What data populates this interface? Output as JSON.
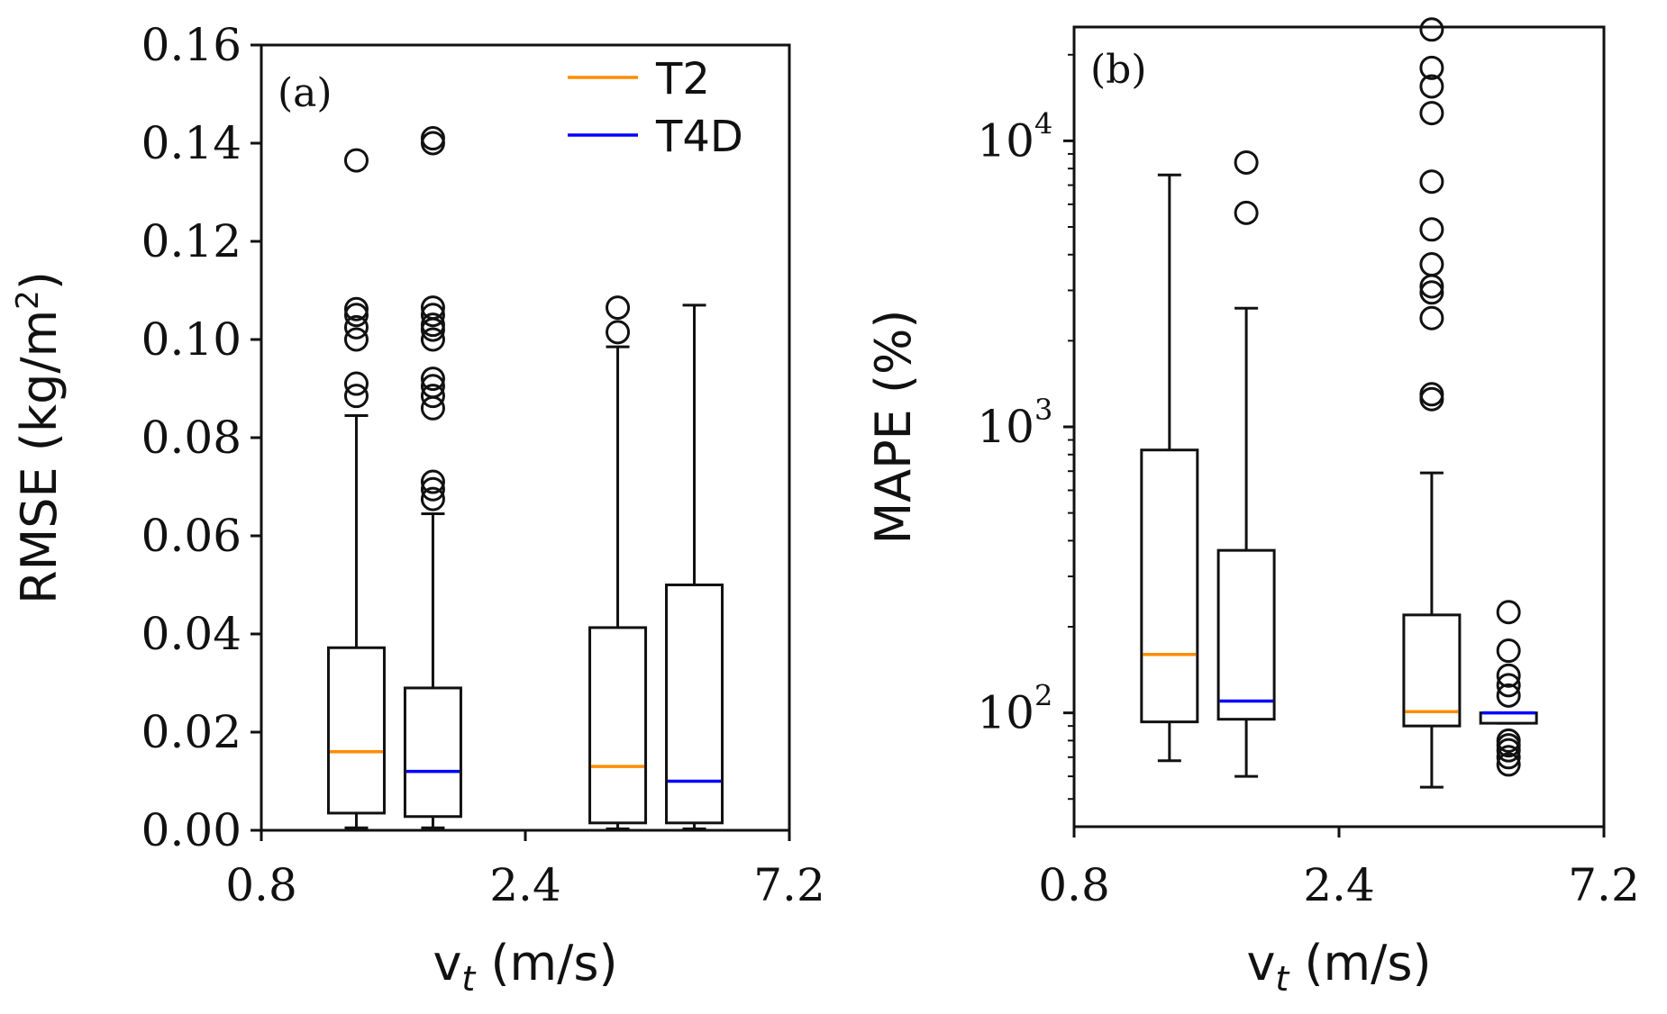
{
  "chart_data": [
    {
      "panel": "(a)",
      "type": "boxplot",
      "scale": "linear",
      "ylabel": "RMSE (kg/m",
      "ylabel_sup": "2",
      "ylabel_end": ")",
      "xlabel_main": "v",
      "xlabel_sub": "t",
      "xlabel_unit": " (m/s)",
      "ylim": [
        0,
        0.16
      ],
      "yticks": [
        {
          "value": 0.0,
          "label": "0.00"
        },
        {
          "value": 0.02,
          "label": "0.02"
        },
        {
          "value": 0.04,
          "label": "0.04"
        },
        {
          "value": 0.06,
          "label": "0.06"
        },
        {
          "value": 0.08,
          "label": "0.08"
        },
        {
          "value": 0.1,
          "label": "0.10"
        },
        {
          "value": 0.12,
          "label": "0.12"
        },
        {
          "value": 0.14,
          "label": "0.14"
        },
        {
          "value": 0.16,
          "label": "0.16"
        }
      ],
      "xticks": [
        {
          "pos": 0,
          "label": "0.8"
        },
        {
          "pos": 0.5,
          "label": "2.4"
        },
        {
          "pos": 1,
          "label": "7.2"
        }
      ],
      "legend": {
        "location": "top-right",
        "entries": [
          {
            "name": "T2",
            "color": "#ff8c00"
          },
          {
            "name": "T4D",
            "color": "#0000ff"
          }
        ]
      },
      "boxes": [
        {
          "series": "T2",
          "color": "#ff8c00",
          "x": 0.18,
          "whislo": 0.0005,
          "q1": 0.0035,
          "med": 0.016,
          "q3": 0.0372,
          "whishi": 0.0845,
          "fliers": [
            0.0885,
            0.091,
            0.1,
            0.1025,
            0.105,
            0.1062,
            0.1365
          ]
        },
        {
          "series": "T4D",
          "color": "#0000ff",
          "x": 0.325,
          "whislo": 0.0005,
          "q1": 0.0028,
          "med": 0.012,
          "q3": 0.029,
          "whishi": 0.0645,
          "fliers": [
            0.0675,
            0.0695,
            0.071,
            0.086,
            0.0885,
            0.0905,
            0.092,
            0.1,
            0.102,
            0.103,
            0.105,
            0.1065,
            0.14,
            0.141
          ]
        },
        {
          "series": "T2",
          "color": "#ff8c00",
          "x": 0.675,
          "whislo": 0.0003,
          "q1": 0.0015,
          "med": 0.013,
          "q3": 0.0413,
          "whishi": 0.0985,
          "fliers": [
            0.1015,
            0.1065
          ]
        },
        {
          "series": "T4D",
          "color": "#0000ff",
          "x": 0.82,
          "whislo": 0.0003,
          "q1": 0.0015,
          "med": 0.01,
          "q3": 0.05,
          "whishi": 0.107,
          "fliers": []
        }
      ]
    },
    {
      "panel": "(b)",
      "type": "boxplot",
      "scale": "log",
      "ylabel": "MAPE (%)",
      "xlabel_main": "v",
      "xlabel_sub": "t",
      "xlabel_unit": " (m/s)",
      "ylim": [
        40,
        25000
      ],
      "yticks": [
        {
          "value": 100,
          "base": "10",
          "exp": "2"
        },
        {
          "value": 1000,
          "base": "10",
          "exp": "3"
        },
        {
          "value": 10000,
          "base": "10",
          "exp": "4"
        }
      ],
      "xticks": [
        {
          "pos": 0,
          "label": "0.8"
        },
        {
          "pos": 0.5,
          "label": "2.4"
        },
        {
          "pos": 1,
          "label": "7.2"
        }
      ],
      "boxes": [
        {
          "series": "T2",
          "color": "#ff8c00",
          "x": 0.18,
          "whislo": 68,
          "q1": 93,
          "med": 160,
          "q3": 830,
          "whishi": 7600,
          "fliers": []
        },
        {
          "series": "T4D",
          "color": "#0000ff",
          "x": 0.325,
          "whislo": 60,
          "q1": 95,
          "med": 110,
          "q3": 370,
          "whishi": 2600,
          "fliers": [
            5600,
            8400
          ]
        },
        {
          "series": "T2",
          "color": "#ff8c00",
          "x": 0.675,
          "whislo": 55,
          "q1": 90,
          "med": 101,
          "q3": 220,
          "whishi": 690,
          "fliers": [
            1250,
            1300,
            2400,
            2950,
            3100,
            3700,
            4900,
            7200,
            12500,
            15500,
            18000,
            24500
          ]
        },
        {
          "series": "T4D",
          "color": "#0000ff",
          "x": 0.82,
          "whislo": 92,
          "q1": 92,
          "med": 100,
          "q3": 100,
          "whishi": 100,
          "fliers": [
            66,
            70,
            74,
            77,
            80,
            115,
            125,
            135,
            165,
            225
          ]
        }
      ]
    }
  ]
}
